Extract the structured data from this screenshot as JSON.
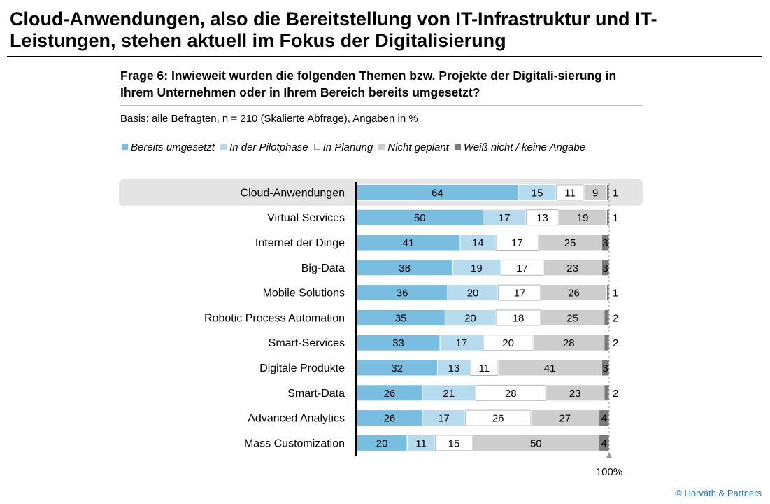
{
  "title": "Cloud-Anwendungen, also die Bereitstellung von IT-Infrastruktur und IT-Leistungen, stehen aktuell im Fokus der Digitalisierung",
  "question": "Frage 6: Inwieweit wurden die folgenden Themen bzw. Projekte der Digitali-sierung in Ihrem Unternehmen oder in Ihrem Bereich bereits umgesetzt?",
  "basis": "Basis: alle Befragten, n = 210 (Skalierte Abfrage), Angaben in %",
  "copyright": "© Horváth & Partners",
  "colors": {
    "bereits": "#79bde0",
    "pilot": "#b6dbef",
    "planung": "#ffffff",
    "nicht": "#cdcdcd",
    "weiss": "#7a7a7a",
    "highlight": "#e4e4e4"
  },
  "chart_data": {
    "type": "bar",
    "orientation": "horizontal",
    "stacked": true,
    "xlim": [
      0,
      100
    ],
    "end_marker_label": "100%",
    "highlighted_category": "Cloud-Anwendungen",
    "legend_position": "top",
    "categories": [
      "Cloud-Anwendungen",
      "Virtual Services",
      "Internet der Dinge",
      "Big-Data",
      "Mobile Solutions",
      "Robotic Process Automation",
      "Smart-Services",
      "Digitale Produkte",
      "Smart-Data",
      "Advanced Analytics",
      "Mass Customization"
    ],
    "series": [
      {
        "name": "Bereits umgesetzt",
        "color": "#79bde0",
        "values": [
          64,
          50,
          41,
          38,
          36,
          35,
          33,
          32,
          26,
          26,
          20
        ]
      },
      {
        "name": "In der Pilotphase",
        "color": "#b6dbef",
        "values": [
          15,
          17,
          14,
          19,
          20,
          20,
          17,
          13,
          21,
          17,
          11
        ]
      },
      {
        "name": "In Planung",
        "color": "#ffffff",
        "values": [
          11,
          13,
          17,
          17,
          17,
          18,
          20,
          11,
          28,
          26,
          15
        ]
      },
      {
        "name": "Nicht geplant",
        "color": "#cdcdcd",
        "values": [
          9,
          19,
          25,
          23,
          26,
          25,
          28,
          41,
          23,
          27,
          50
        ]
      },
      {
        "name": "Weiß nicht / keine Angabe",
        "color": "#7a7a7a",
        "values": [
          1,
          1,
          3,
          3,
          1,
          2,
          2,
          3,
          2,
          4,
          4
        ]
      }
    ]
  }
}
